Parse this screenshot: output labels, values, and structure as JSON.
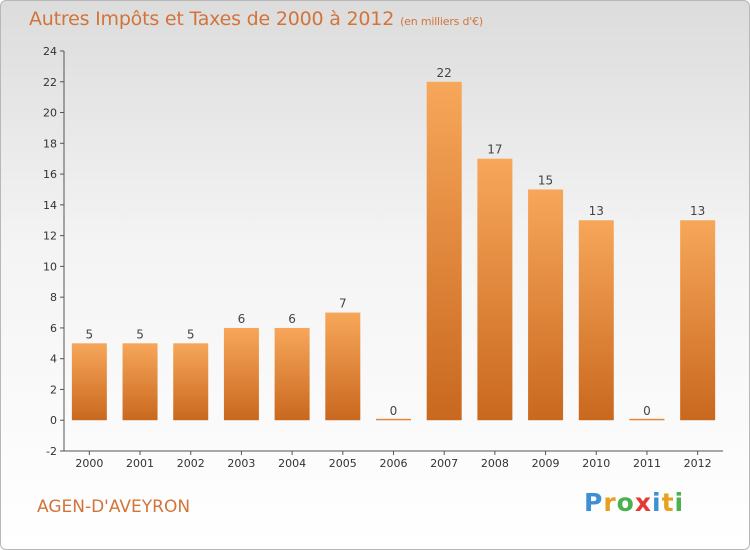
{
  "chart_data": {
    "type": "bar",
    "title": "Autres Impôts et Taxes de 2000 à 2012",
    "subtitle": "(en milliers d'€)",
    "categories": [
      "2000",
      "2001",
      "2002",
      "2003",
      "2004",
      "2005",
      "2006",
      "2007",
      "2008",
      "2009",
      "2010",
      "2011",
      "2012"
    ],
    "values": [
      5,
      5,
      5,
      6,
      6,
      7,
      0,
      22,
      17,
      15,
      13,
      0,
      13
    ],
    "ylim": [
      -2,
      24
    ],
    "yticks": [
      -2,
      0,
      2,
      4,
      6,
      8,
      10,
      12,
      14,
      16,
      18,
      20,
      22,
      24
    ],
    "grid": false,
    "bar_color_top": "#f7a75a",
    "bar_color_bottom": "#c9681f"
  },
  "footer": {
    "location": "AGEN-D'AVEYRON",
    "logo_letters": [
      "P",
      "r",
      "o",
      "x",
      "i",
      "t",
      "i"
    ],
    "logo_colors": [
      "#3d8fd6",
      "#e8a020",
      "#4caf50",
      "#e53935",
      "#3d8fd6",
      "#e8a020",
      "#4caf50"
    ]
  }
}
